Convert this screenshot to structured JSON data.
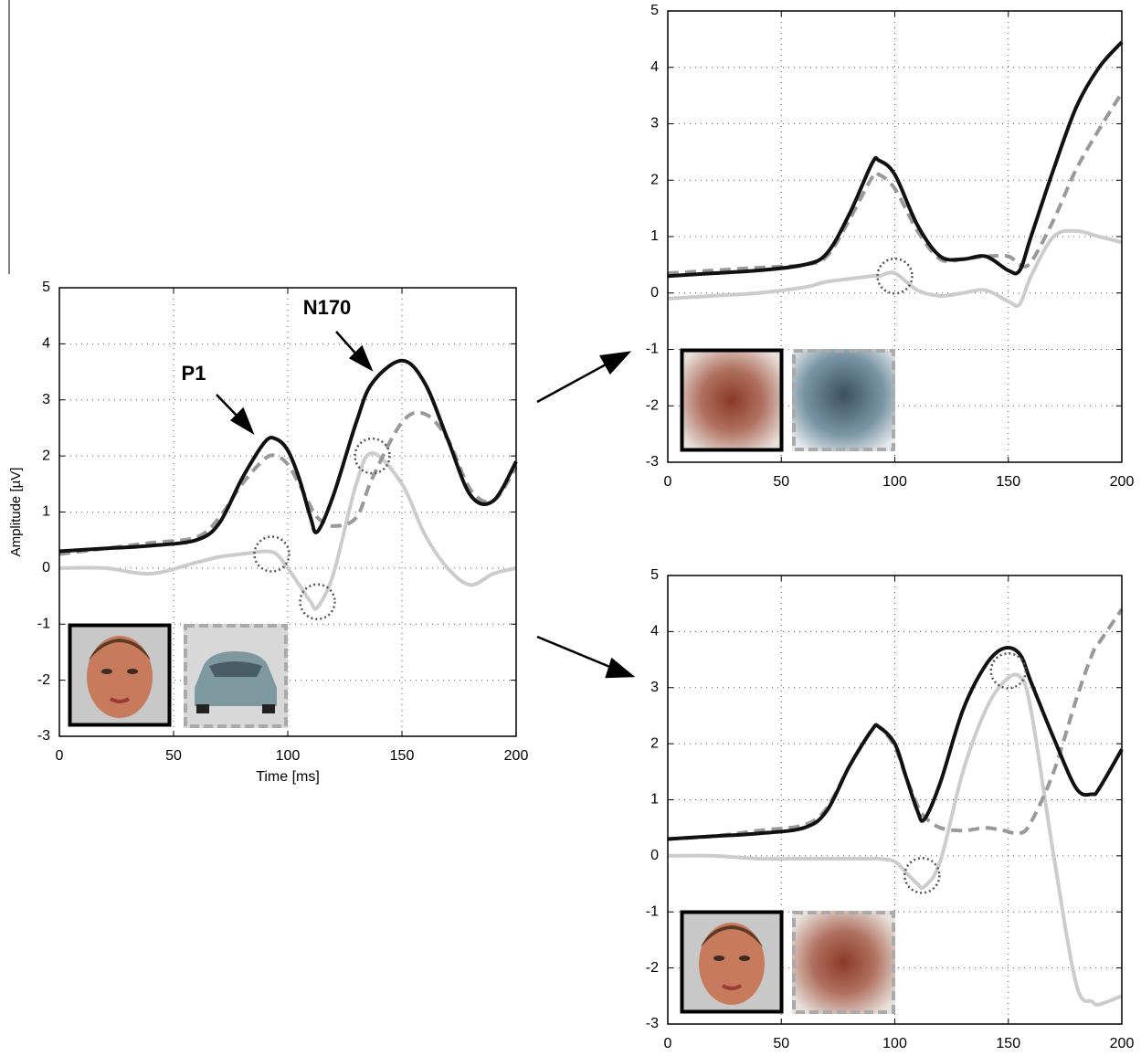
{
  "chart_data": [
    {
      "type": "line",
      "x_label": "Time [ms]",
      "y_label": "Amplitude [µV]",
      "annotations": [
        "P1",
        "N170"
      ],
      "xlim": [
        0,
        200
      ],
      "ylim": [
        -3,
        5
      ],
      "xticks": [
        0,
        50,
        100,
        150,
        200
      ],
      "yticks": [
        -3,
        -2,
        -1,
        0,
        1,
        2,
        3,
        4,
        5
      ],
      "grid": true,
      "x": [
        0,
        20,
        40,
        60,
        70,
        80,
        90,
        95,
        100,
        105,
        110,
        113,
        120,
        130,
        137,
        150,
        160,
        170,
        180,
        190,
        200
      ],
      "series": [
        {
          "color": "#111111",
          "style": "solid",
          "values": [
            0.3,
            0.35,
            0.4,
            0.5,
            0.8,
            1.6,
            2.25,
            2.3,
            2.1,
            1.6,
            0.9,
            0.65,
            1.3,
            2.6,
            3.3,
            3.7,
            3.3,
            2.3,
            1.3,
            1.2,
            1.9
          ]
        },
        {
          "color": "#999999",
          "style": "dashed",
          "values": [
            0.25,
            0.35,
            0.45,
            0.55,
            0.9,
            1.5,
            1.95,
            2.0,
            1.85,
            1.5,
            1.1,
            0.9,
            0.75,
            0.9,
            1.6,
            2.6,
            2.75,
            2.3,
            1.4,
            1.2,
            1.8
          ]
        },
        {
          "color": "#cccccc",
          "style": "solid",
          "values": [
            0.0,
            0.0,
            -0.1,
            0.1,
            0.2,
            0.25,
            0.3,
            0.25,
            0.0,
            -0.3,
            -0.6,
            -0.7,
            -0.1,
            1.5,
            2.05,
            1.5,
            0.6,
            0.0,
            -0.3,
            -0.1,
            0.0
          ]
        }
      ],
      "markers": [
        {
          "x": 93,
          "y": 0.25
        },
        {
          "x": 113,
          "y": -0.6
        },
        {
          "x": 137,
          "y": 2.0
        }
      ]
    },
    {
      "type": "line",
      "xlim": [
        0,
        200
      ],
      "ylim": [
        -3,
        5
      ],
      "xticks": [
        0,
        50,
        100,
        150,
        200
      ],
      "yticks": [
        -3,
        -2,
        -1,
        0,
        1,
        2,
        3,
        4,
        5
      ],
      "grid": true,
      "x": [
        0,
        20,
        40,
        60,
        70,
        80,
        90,
        93,
        100,
        110,
        120,
        130,
        140,
        150,
        155,
        160,
        170,
        180,
        190,
        200
      ],
      "series": [
        {
          "color": "#111111",
          "style": "solid",
          "values": [
            0.3,
            0.35,
            0.4,
            0.5,
            0.7,
            1.4,
            2.3,
            2.35,
            2.1,
            1.2,
            0.65,
            0.6,
            0.65,
            0.4,
            0.4,
            1.0,
            2.2,
            3.3,
            4.0,
            4.45
          ]
        },
        {
          "color": "#999999",
          "style": "dashed",
          "values": [
            0.35,
            0.4,
            0.45,
            0.5,
            0.65,
            1.3,
            2.05,
            2.1,
            1.85,
            1.1,
            0.6,
            0.6,
            0.65,
            0.65,
            0.5,
            0.55,
            1.3,
            2.2,
            2.9,
            3.55
          ]
        },
        {
          "color": "#cccccc",
          "style": "solid",
          "values": [
            -0.1,
            -0.05,
            0.0,
            0.1,
            0.2,
            0.25,
            0.3,
            0.3,
            0.35,
            0.05,
            -0.05,
            0.0,
            0.05,
            -0.15,
            -0.2,
            0.3,
            1.0,
            1.1,
            1.0,
            0.9
          ]
        }
      ],
      "markers": [
        {
          "x": 100,
          "y": 0.3
        }
      ]
    },
    {
      "type": "line",
      "xlim": [
        0,
        200
      ],
      "ylim": [
        -3,
        5
      ],
      "xticks": [
        0,
        50,
        100,
        150,
        200
      ],
      "yticks": [
        -3,
        -2,
        -1,
        0,
        1,
        2,
        3,
        4,
        5
      ],
      "grid": true,
      "x": [
        0,
        20,
        40,
        60,
        70,
        80,
        90,
        93,
        100,
        105,
        110,
        113,
        120,
        130,
        140,
        148,
        155,
        160,
        170,
        180,
        187,
        190,
        200
      ],
      "series": [
        {
          "color": "#111111",
          "style": "solid",
          "values": [
            0.3,
            0.35,
            0.4,
            0.5,
            0.8,
            1.6,
            2.25,
            2.3,
            2.0,
            1.4,
            0.8,
            0.65,
            1.3,
            2.6,
            3.4,
            3.7,
            3.6,
            3.1,
            2.1,
            1.2,
            1.1,
            1.2,
            1.9
          ]
        },
        {
          "color": "#999999",
          "style": "dashed",
          "values": [
            0.3,
            0.35,
            0.45,
            0.55,
            0.85,
            1.6,
            2.25,
            2.3,
            1.95,
            1.4,
            0.9,
            0.7,
            0.5,
            0.45,
            0.5,
            0.45,
            0.4,
            0.6,
            1.5,
            2.8,
            3.6,
            3.8,
            4.4
          ]
        },
        {
          "color": "#cccccc",
          "style": "solid",
          "values": [
            0.0,
            0.0,
            -0.05,
            -0.05,
            -0.05,
            -0.05,
            -0.05,
            -0.05,
            -0.1,
            -0.3,
            -0.5,
            -0.55,
            -0.1,
            1.5,
            2.6,
            3.1,
            3.2,
            2.6,
            0.0,
            -2.3,
            -2.6,
            -2.65,
            -2.5
          ]
        }
      ],
      "markers": [
        {
          "x": 112,
          "y": -0.35
        },
        {
          "x": 150,
          "y": 3.3
        }
      ]
    }
  ]
}
